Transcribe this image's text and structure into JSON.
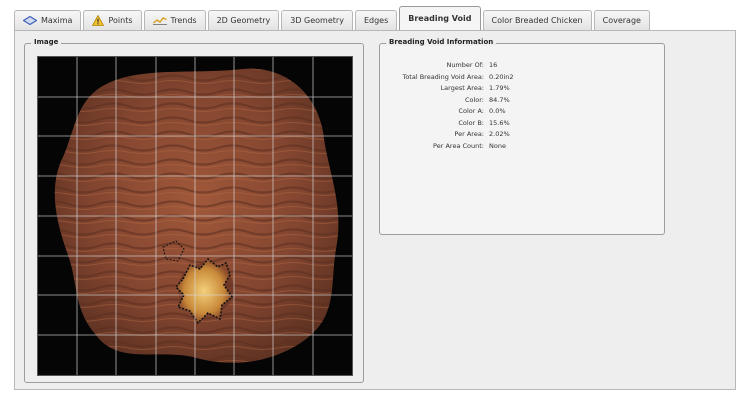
{
  "tabs": [
    {
      "label": "Maxima",
      "icon": "diamond-icon"
    },
    {
      "label": "Points",
      "icon": "warning-icon"
    },
    {
      "label": "Trends",
      "icon": "trend-icon"
    },
    {
      "label": "2D Geometry"
    },
    {
      "label": "3D Geometry"
    },
    {
      "label": "Edges"
    },
    {
      "label": "Breading Void",
      "active": true
    },
    {
      "label": "Color Breaded Chicken"
    },
    {
      "label": "Coverage"
    }
  ],
  "image_panel": {
    "title": "Image"
  },
  "info_panel": {
    "title": "Breading Void Information",
    "rows": [
      {
        "label": "Number Of:",
        "value": "16"
      },
      {
        "label": "Total Breading Void Area:",
        "value": "0.20in2"
      },
      {
        "label": "Largest Area:",
        "value": "1.79%"
      },
      {
        "label": "Color:",
        "value": "84.7%"
      },
      {
        "label": "Color A:",
        "value": "0.0%"
      },
      {
        "label": "Color B:",
        "value": "15.6%"
      },
      {
        "label": "Per Area:",
        "value": "2.02%"
      },
      {
        "label": "Per Area Count:",
        "value": "None"
      }
    ]
  },
  "colors": {
    "accent": "#3c5fb4",
    "food": "#8a4a32",
    "background": "#050505"
  }
}
